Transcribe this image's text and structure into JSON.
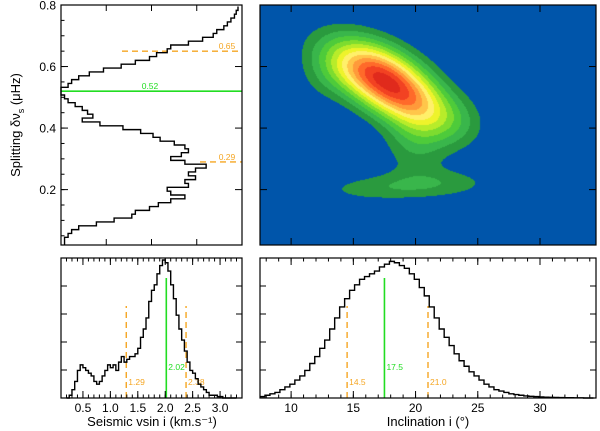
{
  "chart_data": [
    {
      "id": "splitting-hist",
      "type": "step-histogram",
      "orientation": "horizontal",
      "ylabel_main": "Splitting δν",
      "ylabel_sub": "s",
      "ylabel_unit": "(μHz)",
      "ylim": [
        0.02,
        0.8
      ],
      "yticks": [
        0.2,
        0.4,
        0.6,
        0.8
      ],
      "ytick_labels": [
        "0.2",
        "0.4",
        "0.6",
        "0.8"
      ],
      "xlim": [
        0,
        1
      ],
      "bins": [
        0.02,
        0.0325,
        0.045,
        0.0575,
        0.07,
        0.0825,
        0.095,
        0.1075,
        0.12,
        0.1325,
        0.145,
        0.1575,
        0.17,
        0.1825,
        0.195,
        0.2075,
        0.22,
        0.2325,
        0.245,
        0.2575,
        0.27,
        0.2825,
        0.295,
        0.3075,
        0.32,
        0.3325,
        0.345,
        0.3575,
        0.37,
        0.3825,
        0.395,
        0.4075,
        0.42,
        0.4325,
        0.445,
        0.4575,
        0.47,
        0.4825,
        0.495,
        0.5075,
        0.52,
        0.5325,
        0.545,
        0.5575,
        0.57,
        0.5825,
        0.595,
        0.6075,
        0.62,
        0.6325,
        0.645,
        0.6575,
        0.67,
        0.6825,
        0.695,
        0.7075,
        0.72,
        0.7325,
        0.745,
        0.7575,
        0.77,
        0.7825,
        0.795
      ],
      "counts": [
        0.02,
        0.02,
        0.04,
        0.06,
        0.1,
        0.2,
        0.3,
        0.4,
        0.42,
        0.5,
        0.55,
        0.62,
        0.7,
        0.62,
        0.6,
        0.72,
        0.7,
        0.76,
        0.72,
        0.76,
        0.82,
        0.7,
        0.62,
        0.68,
        0.72,
        0.7,
        0.64,
        0.56,
        0.52,
        0.45,
        0.35,
        0.22,
        0.12,
        0.18,
        0.15,
        0.12,
        0.08,
        0.04,
        0.02,
        0.0,
        0.0,
        0.04,
        0.06,
        0.1,
        0.16,
        0.24,
        0.34,
        0.42,
        0.5,
        0.54,
        0.6,
        0.62,
        0.72,
        0.8,
        0.86,
        0.88,
        0.92,
        0.94,
        0.96,
        0.98,
        0.99,
        1.0
      ],
      "median": {
        "value": 0.52,
        "label": "0.52",
        "color": "#22dd22"
      },
      "quantiles": [
        {
          "value": 0.65,
          "label": "0.65",
          "color": "#f5a623"
        },
        {
          "value": 0.29,
          "label": "0.29",
          "color": "#f5a623"
        }
      ]
    },
    {
      "id": "contour-map",
      "type": "filled-contour",
      "xlim": [
        7.5,
        34.5
      ],
      "ylim": [
        0.02,
        0.8
      ],
      "background_color": "#0055aa",
      "colormap": [
        "#2a9a3e",
        "#39b64b",
        "#4ecb3a",
        "#7ddc2f",
        "#b8ec2a",
        "#eef32b",
        "#fff06a",
        "#ffc64a",
        "#ff9a3a",
        "#ff6a2a",
        "#f24222",
        "#e02a1c"
      ],
      "components": [
        {
          "x": 17.5,
          "y": 0.56,
          "sx": 3.0,
          "sy": 0.085,
          "rho": -0.55,
          "a": 1.0
        },
        {
          "x": 19.5,
          "y": 0.48,
          "sx": 2.7,
          "sy": 0.075,
          "rho": -0.5,
          "a": 0.65
        },
        {
          "x": 16.0,
          "y": 0.6,
          "sx": 2.6,
          "sy": 0.07,
          "rho": -0.3,
          "a": 0.45
        },
        {
          "x": 20.0,
          "y": 0.35,
          "sx": 1.8,
          "sy": 0.07,
          "rho": 0.0,
          "a": 0.28
        },
        {
          "x": 21.5,
          "y": 0.22,
          "sx": 3.5,
          "sy": 0.035,
          "rho": 0.0,
          "a": 0.26
        },
        {
          "x": 16.0,
          "y": 0.2,
          "sx": 3.0,
          "sy": 0.03,
          "rho": 0.0,
          "a": 0.18
        },
        {
          "x": 23.5,
          "y": 0.42,
          "sx": 1.6,
          "sy": 0.06,
          "rho": 0.0,
          "a": 0.12
        },
        {
          "x": 12.5,
          "y": 0.56,
          "sx": 1.5,
          "sy": 0.06,
          "rho": 0.0,
          "a": 0.1
        }
      ]
    },
    {
      "id": "vsini-hist",
      "type": "step-histogram",
      "xlabel": "Seismic vsin i (km.s⁻¹)",
      "xlim": [
        0.1,
        3.4
      ],
      "xticks": [
        0.5,
        1.0,
        1.5,
        2.0,
        2.5,
        3.0
      ],
      "xtick_labels": [
        "0.5",
        "1.0",
        "1.5",
        "2.0",
        "2.5",
        "3.0"
      ],
      "ylim": [
        0,
        1.0
      ],
      "bins": [
        0.2,
        0.25,
        0.3,
        0.35,
        0.4,
        0.45,
        0.5,
        0.55,
        0.6,
        0.65,
        0.7,
        0.75,
        0.8,
        0.85,
        0.9,
        0.95,
        1.0,
        1.05,
        1.1,
        1.15,
        1.2,
        1.25,
        1.3,
        1.35,
        1.4,
        1.45,
        1.5,
        1.55,
        1.6,
        1.65,
        1.7,
        1.75,
        1.8,
        1.85,
        1.9,
        1.95,
        2.0,
        2.05,
        2.1,
        2.15,
        2.2,
        2.25,
        2.3,
        2.35,
        2.4,
        2.45,
        2.5,
        2.55,
        2.6,
        2.65,
        2.7,
        2.75,
        2.8,
        2.85,
        2.9,
        2.95,
        3.0,
        3.05,
        3.1,
        3.15,
        3.2,
        3.25,
        3.3
      ],
      "counts": [
        0.0,
        0.02,
        0.06,
        0.12,
        0.2,
        0.24,
        0.22,
        0.2,
        0.18,
        0.16,
        0.12,
        0.1,
        0.12,
        0.16,
        0.2,
        0.24,
        0.22,
        0.24,
        0.2,
        0.26,
        0.3,
        0.26,
        0.28,
        0.3,
        0.3,
        0.32,
        0.36,
        0.44,
        0.5,
        0.58,
        0.7,
        0.78,
        0.82,
        0.9,
        0.96,
        1.0,
        0.98,
        0.92,
        0.82,
        0.72,
        0.6,
        0.5,
        0.42,
        0.34,
        0.26,
        0.2,
        0.18,
        0.14,
        0.1,
        0.08,
        0.06,
        0.04,
        0.02,
        0.02,
        0.02,
        0.01,
        0.01,
        0.0,
        0.0,
        0.0,
        0.0,
        0.0
      ],
      "median": {
        "value": 2.02,
        "label": "2.02",
        "color": "#22dd22"
      },
      "quantiles": [
        {
          "value": 1.29,
          "label": "1.29",
          "color": "#f5a623"
        },
        {
          "value": 2.38,
          "label": "2.38",
          "color": "#f5a623"
        }
      ]
    },
    {
      "id": "inclination-hist",
      "type": "step-histogram",
      "xlabel": "Inclination i (°)",
      "xlim": [
        7.5,
        34.5
      ],
      "xticks": [
        10,
        15,
        20,
        25,
        30
      ],
      "xtick_labels": [
        "10",
        "15",
        "20",
        "25",
        "30"
      ],
      "ylim": [
        0,
        1.0
      ],
      "bins": [
        7.5,
        7.9,
        8.3,
        8.7,
        9.1,
        9.5,
        9.9,
        10.3,
        10.7,
        11.1,
        11.5,
        11.9,
        12.3,
        12.7,
        13.1,
        13.5,
        13.9,
        14.3,
        14.7,
        15.1,
        15.5,
        15.9,
        16.3,
        16.7,
        17.1,
        17.5,
        17.9,
        18.3,
        18.7,
        19.1,
        19.5,
        19.9,
        20.3,
        20.7,
        21.1,
        21.5,
        21.9,
        22.3,
        22.7,
        23.1,
        23.5,
        23.9,
        24.3,
        24.7,
        25.1,
        25.5,
        25.9,
        26.3,
        26.7,
        27.1,
        27.5,
        27.9,
        28.3,
        28.7,
        29.1,
        29.5,
        29.9,
        30.3,
        30.7,
        31.1,
        31.5,
        31.9,
        32.3,
        32.7,
        33.1,
        33.5,
        33.9,
        34.3
      ],
      "counts": [
        0.01,
        0.02,
        0.03,
        0.04,
        0.06,
        0.08,
        0.1,
        0.13,
        0.16,
        0.2,
        0.25,
        0.3,
        0.36,
        0.42,
        0.5,
        0.58,
        0.66,
        0.72,
        0.78,
        0.82,
        0.86,
        0.88,
        0.9,
        0.92,
        0.95,
        0.97,
        0.99,
        0.98,
        0.96,
        0.94,
        0.9,
        0.86,
        0.8,
        0.74,
        0.66,
        0.58,
        0.5,
        0.44,
        0.38,
        0.32,
        0.27,
        0.23,
        0.19,
        0.16,
        0.13,
        0.1,
        0.08,
        0.06,
        0.05,
        0.04,
        0.03,
        0.025,
        0.02,
        0.015,
        0.012,
        0.01,
        0.008,
        0.006,
        0.005,
        0.004,
        0.003,
        0.002,
        0.002,
        0.001,
        0.001,
        0.0,
        0.0
      ],
      "median": {
        "value": 17.5,
        "label": "17.5",
        "color": "#22dd22"
      },
      "quantiles": [
        {
          "value": 14.5,
          "label": "14.5",
          "color": "#f5a623"
        },
        {
          "value": 21.0,
          "label": "21.0",
          "color": "#f5a623"
        }
      ]
    }
  ]
}
